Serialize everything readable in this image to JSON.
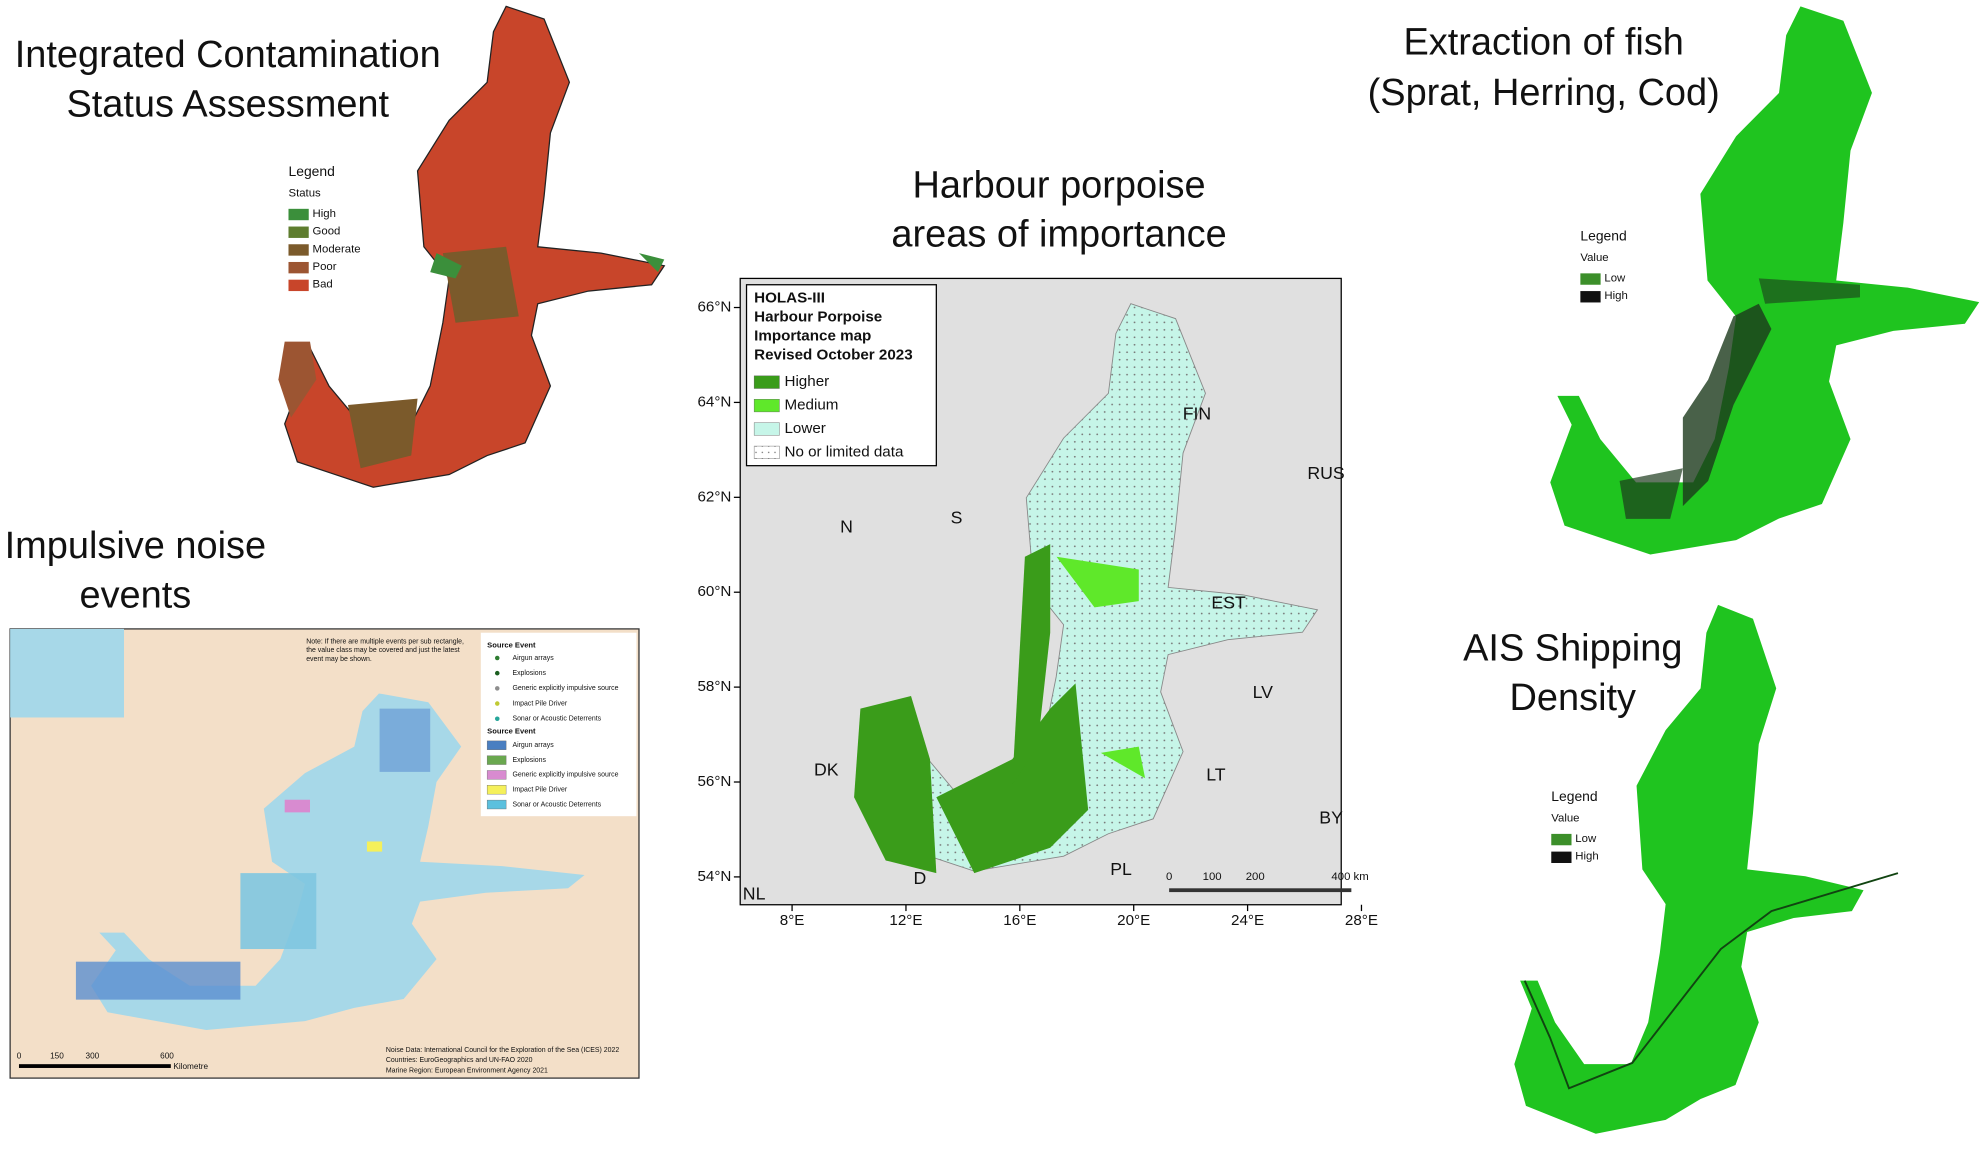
{
  "panels": {
    "contamination": {
      "title": [
        "Integrated Contamination",
        "Status Assessment"
      ],
      "legend_title": "Legend",
      "legend_subtitle": "Status",
      "items": [
        {
          "label": "High",
          "color": "#3b8f3b"
        },
        {
          "label": "Good",
          "color": "#5e7d2e"
        },
        {
          "label": "Moderate",
          "color": "#7b5a2b"
        },
        {
          "label": "Poor",
          "color": "#9c5532"
        },
        {
          "label": "Bad",
          "color": "#c8452a"
        }
      ]
    },
    "noise": {
      "title": [
        "Impulsive noise",
        "events"
      ],
      "note": [
        "Note: If there are multiple events per sub rectangle,",
        "the value class may be covered and just the latest",
        "event may be shown."
      ],
      "point_legend_title": "Source Event",
      "point_items": [
        {
          "label": "Airgun arrays",
          "color": "#2e7d32"
        },
        {
          "label": "Explosions",
          "color": "#1b5e20"
        },
        {
          "label": "Generic explicitly impulsive source",
          "color": "#8e8e8e"
        },
        {
          "label": "Impact Pile Driver",
          "color": "#c0ca33"
        },
        {
          "label": "Sonar or Acoustic Deterrents",
          "color": "#26a69a"
        }
      ],
      "area_legend_title": "Source Event",
      "area_items": [
        {
          "label": "Airgun arrays",
          "color": "#4a7fc1"
        },
        {
          "label": "Explosions",
          "color": "#6aa84f"
        },
        {
          "label": "Generic explicitly impulsive source",
          "color": "#d88bd0"
        },
        {
          "label": "Impact Pile Driver",
          "color": "#f5f05a"
        },
        {
          "label": "Sonar or Acoustic Deterrents",
          "color": "#5bc0de"
        }
      ],
      "scale_ticks": [
        "0",
        "150",
        "300",
        "600"
      ],
      "scale_unit": "Kilometre",
      "credits": [
        "Noise Data: International Council for the Exploration of the Sea (ICES) 2022",
        "Countries: EuroGeographics and UN-FAO 2020",
        "Marine Region: European Environment Agency 2021"
      ]
    },
    "porpoise": {
      "title": [
        "Harbour porpoise",
        "areas of importance"
      ],
      "legend_lines": [
        "HOLAS-III",
        "Harbour Porpoise",
        "Importance map",
        "Revised October 2023"
      ],
      "items": [
        {
          "label": "Higher",
          "color": "#3a9c1a"
        },
        {
          "label": "Medium",
          "color": "#5fe82a"
        },
        {
          "label": "Lower",
          "color": "#c6f5e8"
        },
        {
          "label": "No or limited data",
          "color": "#ffffff"
        }
      ],
      "lat_labels": [
        "66°N",
        "64°N",
        "62°N",
        "60°N",
        "58°N",
        "56°N",
        "54°N"
      ],
      "lon_labels": [
        "8°E",
        "12°E",
        "16°E",
        "20°E",
        "24°E",
        "28°E"
      ],
      "countries": [
        "FIN",
        "RUS",
        "N",
        "S",
        "EST",
        "LV",
        "LT",
        "BY",
        "DK",
        "PL",
        "D",
        "NL"
      ],
      "scale_ticks": [
        "0",
        "100",
        "200",
        "400 km"
      ]
    },
    "fish": {
      "title": [
        "Extraction of fish",
        "(Sprat, Herring, Cod)"
      ],
      "legend_title": "Legend",
      "legend_subtitle": "Value",
      "items": [
        {
          "label": "Low",
          "color": "#3c8f2a"
        },
        {
          "label": "High",
          "color": "#111111"
        }
      ]
    },
    "ais": {
      "title": [
        "AIS Shipping",
        "Density"
      ],
      "legend_title": "Legend",
      "legend_subtitle": "Value",
      "items": [
        {
          "label": "Low",
          "color": "#3c8f2a"
        },
        {
          "label": "High",
          "color": "#111111"
        }
      ]
    }
  }
}
